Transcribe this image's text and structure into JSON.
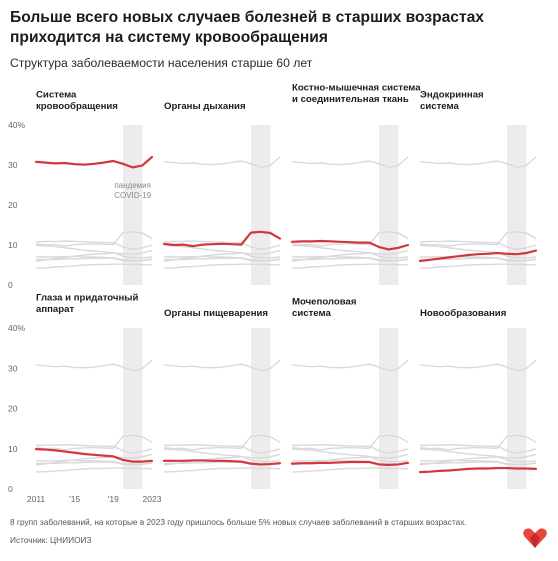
{
  "header": {
    "title": "Больше всего новых случаев болезней в старших возрастах приходится на систему кровообращения",
    "subtitle": "Структура заболеваемости населения старше 60 лет"
  },
  "footer": {
    "note": "8 групп заболеваний, на которые в 2023 году пришлось больше 5% новых случаев заболеваний в старших возрастах.",
    "source": "Источник: ЦНИИОИЗ"
  },
  "colors": {
    "highlight": "#d2373c",
    "context": "#d9d9d9",
    "band": "#ececec",
    "axis_text": "#666666"
  },
  "chart_data": {
    "type": "line",
    "layout": "small-multiples",
    "years": [
      2011,
      2012,
      2013,
      2014,
      2015,
      2016,
      2017,
      2018,
      2019,
      2020,
      2021,
      2022,
      2023
    ],
    "y_ticks": [
      "0",
      "10",
      "20",
      "30",
      "40%"
    ],
    "x_ticks": [
      "2011",
      "'15",
      "'19",
      "2023"
    ],
    "ylim": [
      0,
      40
    ],
    "annotation": {
      "label": "пандемия COVID-19",
      "band": [
        2020,
        2022
      ]
    },
    "series": [
      {
        "name": "Система кровообращения",
        "values": [
          30.8,
          30.6,
          30.4,
          30.5,
          30.2,
          30.1,
          30.3,
          30.6,
          31.0,
          30.3,
          29.4,
          29.9,
          32.0
        ]
      },
      {
        "name": "Органы дыхания",
        "values": [
          10.3,
          10.0,
          10.1,
          9.7,
          10.1,
          10.2,
          10.3,
          10.2,
          10.1,
          13.1,
          13.3,
          13.0,
          11.6
        ]
      },
      {
        "name": "Костно-мышечная система и соединительная ткань",
        "values": [
          10.8,
          10.9,
          10.9,
          11.0,
          10.9,
          10.8,
          10.7,
          10.6,
          10.6,
          9.5,
          8.9,
          9.3,
          10.0
        ]
      },
      {
        "name": "Эндокринная система",
        "values": [
          6.0,
          6.3,
          6.6,
          6.9,
          7.2,
          7.5,
          7.7,
          7.8,
          8.0,
          7.8,
          7.7,
          8.0,
          8.6
        ]
      },
      {
        "name": "Глаза и придаточный аппарат",
        "values": [
          9.9,
          9.8,
          9.6,
          9.3,
          9.0,
          8.7,
          8.5,
          8.3,
          8.1,
          7.2,
          6.8,
          6.8,
          7.0
        ]
      },
      {
        "name": "Органы пищеварения",
        "values": [
          7.0,
          7.0,
          7.0,
          7.1,
          7.1,
          7.0,
          7.0,
          6.9,
          6.8,
          6.3,
          6.1,
          6.2,
          6.4
        ]
      },
      {
        "name": "Мочеполовая система",
        "values": [
          6.3,
          6.4,
          6.4,
          6.5,
          6.5,
          6.6,
          6.7,
          6.7,
          6.7,
          6.1,
          6.0,
          6.1,
          6.5
        ]
      },
      {
        "name": "Новообразования",
        "values": [
          4.2,
          4.3,
          4.5,
          4.6,
          4.8,
          5.0,
          5.1,
          5.1,
          5.2,
          5.2,
          5.1,
          5.1,
          5.0
        ]
      }
    ]
  }
}
